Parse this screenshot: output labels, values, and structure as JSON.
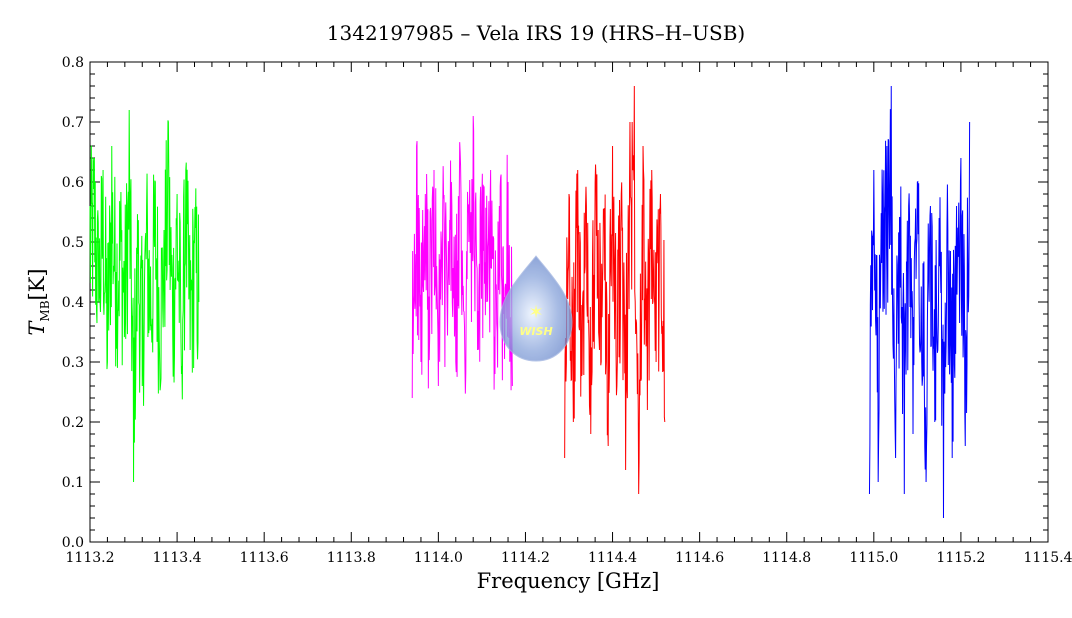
{
  "chart_data": {
    "type": "line",
    "title": "1342197985 – Vela IRS 19 (HRS–H–USB)",
    "xlabel": "Frequency [GHz]",
    "ylabel_main": "T",
    "ylabel_sub": "MB",
    "ylabel_unit": "[K]",
    "xlim": [
      1113.2,
      1115.4
    ],
    "ylim": [
      0.0,
      0.8
    ],
    "x_ticks": [
      "1113.2",
      "1113.4",
      "1113.6",
      "1113.8",
      "1114.0",
      "1114.2",
      "1114.4",
      "1114.6",
      "1114.8",
      "1115.0",
      "1115.2",
      "1115.4"
    ],
    "y_ticks": [
      "0.0",
      "0.1",
      "0.2",
      "0.3",
      "0.4",
      "0.5",
      "0.6",
      "0.7",
      "0.8"
    ],
    "grid": false,
    "logo_text": "WISH",
    "series": [
      {
        "color": "#00ff00",
        "x": [
          1113.2,
          1113.21,
          1113.22,
          1113.23,
          1113.24,
          1113.25,
          1113.26,
          1113.27,
          1113.28,
          1113.29,
          1113.3,
          1113.31,
          1113.32,
          1113.33,
          1113.34,
          1113.35,
          1113.36,
          1113.37,
          1113.38,
          1113.39,
          1113.4,
          1113.41,
          1113.42,
          1113.43,
          1113.44,
          1113.45
        ],
        "y": [
          0.56,
          0.64,
          0.4,
          0.62,
          0.3,
          0.66,
          0.45,
          0.54,
          0.38,
          0.72,
          0.1,
          0.48,
          0.26,
          0.56,
          0.36,
          0.6,
          0.3,
          0.52,
          0.7,
          0.34,
          0.58,
          0.28,
          0.62,
          0.32,
          0.5,
          0.4
        ]
      },
      {
        "color": "#ff00ff",
        "x": [
          1113.94,
          1113.95,
          1113.96,
          1113.97,
          1113.98,
          1113.99,
          1114.0,
          1114.01,
          1114.02,
          1114.03,
          1114.04,
          1114.05,
          1114.06,
          1114.07,
          1114.08,
          1114.09,
          1114.1,
          1114.11,
          1114.12,
          1114.13,
          1114.14,
          1114.15,
          1114.16,
          1114.17
        ],
        "y": [
          0.24,
          0.66,
          0.3,
          0.58,
          0.34,
          0.62,
          0.26,
          0.55,
          0.4,
          0.6,
          0.3,
          0.65,
          0.36,
          0.5,
          0.71,
          0.32,
          0.58,
          0.4,
          0.62,
          0.28,
          0.56,
          0.38,
          0.6,
          0.26
        ]
      },
      {
        "color": "#ff0000",
        "x": [
          1114.29,
          1114.3,
          1114.31,
          1114.32,
          1114.33,
          1114.34,
          1114.35,
          1114.36,
          1114.37,
          1114.38,
          1114.39,
          1114.4,
          1114.41,
          1114.42,
          1114.43,
          1114.44,
          1114.45,
          1114.46,
          1114.47,
          1114.48,
          1114.49,
          1114.5,
          1114.51,
          1114.52
        ],
        "y": [
          0.14,
          0.58,
          0.2,
          0.62,
          0.28,
          0.56,
          0.18,
          0.6,
          0.32,
          0.54,
          0.16,
          0.66,
          0.26,
          0.58,
          0.12,
          0.7,
          0.76,
          0.08,
          0.66,
          0.22,
          0.62,
          0.3,
          0.58,
          0.2
        ]
      },
      {
        "color": "#0000ff",
        "x": [
          1114.99,
          1115.0,
          1115.01,
          1115.02,
          1115.03,
          1115.04,
          1115.05,
          1115.06,
          1115.07,
          1115.08,
          1115.09,
          1115.1,
          1115.11,
          1115.12,
          1115.13,
          1115.14,
          1115.15,
          1115.16,
          1115.17,
          1115.18,
          1115.19,
          1115.2,
          1115.21,
          1115.22
        ],
        "y": [
          0.08,
          0.62,
          0.1,
          0.58,
          0.66,
          0.76,
          0.14,
          0.54,
          0.08,
          0.56,
          0.18,
          0.6,
          0.3,
          0.1,
          0.56,
          0.2,
          0.54,
          0.04,
          0.52,
          0.14,
          0.56,
          0.64,
          0.16,
          0.7
        ]
      }
    ]
  }
}
